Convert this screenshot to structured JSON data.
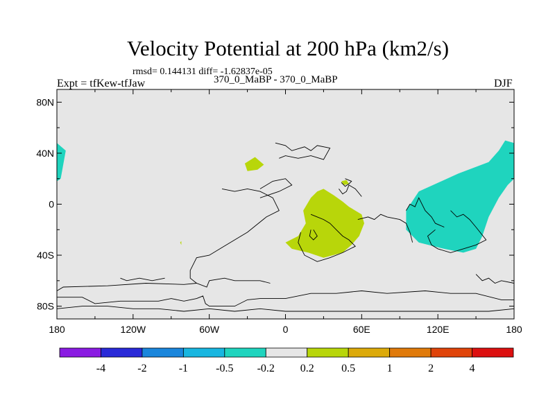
{
  "chart_data": {
    "type": "heatmap",
    "title": "Velocity Potential at 200 hPa (km2/s)",
    "stats_line": "rmsd= 0.144131 diff= -1.62837e-05",
    "left_label": "Expt = tfKew-tfJaw",
    "center_label": "370_0_MaBP - 370_0_MaBP",
    "right_label": "DJF",
    "x_ticks": [
      "180",
      "120W",
      "60W",
      "0",
      "60E",
      "120E",
      "180"
    ],
    "x_tick_values": [
      -180,
      -120,
      -60,
      0,
      60,
      120,
      180
    ],
    "y_ticks": [
      "80N",
      "40N",
      "0",
      "40S",
      "80S"
    ],
    "y_tick_values": [
      80,
      40,
      0,
      -40,
      -80
    ],
    "xlim": [
      -180,
      180
    ],
    "ylim": [
      -90,
      90
    ],
    "colorbar": {
      "labels": [
        "-4",
        "-2",
        "-1",
        "-0.5",
        "-0.2",
        "0.2",
        "0.5",
        "1",
        "2",
        "4"
      ],
      "colors": [
        "#8a1be2",
        "#2a2ad8",
        "#1a86dc",
        "#18b6e0",
        "#1fd4be",
        "#e6e6e6",
        "#b8d60a",
        "#dcaa0a",
        "#e07a0a",
        "#e0440a",
        "#dc1010"
      ]
    },
    "background_color": "#e6e6e6",
    "regions": [
      {
        "level": "-0.5 to -0.2",
        "color": "#1fd4be",
        "points": [
          [
            -180,
            48
          ],
          [
            -173,
            42
          ],
          [
            -177,
            20
          ],
          [
            -180,
            18
          ]
        ]
      },
      {
        "level": "-0.5 to -0.2",
        "color": "#1fd4be",
        "points": [
          [
            180,
            48
          ],
          [
            173,
            50
          ],
          [
            168,
            42
          ],
          [
            160,
            33
          ],
          [
            136,
            24
          ],
          [
            105,
            10
          ],
          [
            95,
            -5
          ],
          [
            95,
            -20
          ],
          [
            105,
            -30
          ],
          [
            125,
            -35
          ],
          [
            140,
            -38
          ],
          [
            150,
            -35
          ],
          [
            155,
            -25
          ],
          [
            160,
            -10
          ],
          [
            168,
            5
          ],
          [
            175,
            15
          ],
          [
            180,
            20
          ]
        ]
      },
      {
        "level": "0.2 to 0.5",
        "color": "#b8d60a",
        "points": [
          [
            20,
            5
          ],
          [
            25,
            10
          ],
          [
            30,
            12
          ],
          [
            38,
            7
          ],
          [
            45,
            2
          ],
          [
            50,
            -2
          ],
          [
            60,
            -8
          ],
          [
            62,
            -15
          ],
          [
            58,
            -25
          ],
          [
            52,
            -32
          ],
          [
            45,
            -38
          ],
          [
            30,
            -42
          ],
          [
            18,
            -38
          ],
          [
            5,
            -35
          ],
          [
            0,
            -30
          ],
          [
            10,
            -25
          ],
          [
            16,
            -15
          ],
          [
            14,
            -5
          ]
        ]
      },
      {
        "level": "0.2 to 0.5",
        "color": "#b8d60a",
        "points": [
          [
            -32,
            32
          ],
          [
            -24,
            37
          ],
          [
            -17,
            31
          ],
          [
            -22,
            27
          ],
          [
            -30,
            26
          ]
        ]
      },
      {
        "level": "0.2 to 0.5",
        "color": "#b8d60a",
        "points": [
          [
            44,
            18
          ],
          [
            48,
            19
          ],
          [
            50,
            16
          ],
          [
            46,
            15
          ]
        ]
      },
      {
        "level": "0.2 to 0.5",
        "color": "#b8d60a",
        "points": [
          [
            -83,
            -30
          ],
          [
            -82,
            -29
          ],
          [
            -82,
            -32
          ]
        ]
      }
    ],
    "coastlines": [
      [
        [
          -180,
          -68
        ],
        [
          -175,
          -65
        ],
        [
          -140,
          -64
        ],
        [
          -110,
          -62
        ],
        [
          -80,
          -63
        ],
        [
          -70,
          -62
        ],
        [
          -62,
          -65
        ],
        [
          -60,
          -60
        ],
        [
          -48,
          -58
        ],
        [
          -40,
          -60
        ],
        [
          -30,
          -60
        ],
        [
          -20,
          -60
        ],
        [
          -12,
          -62
        ]
      ],
      [
        [
          -180,
          -73
        ],
        [
          -160,
          -73
        ],
        [
          -150,
          -78
        ],
        [
          -130,
          -76
        ],
        [
          -120,
          -76
        ],
        [
          -100,
          -76
        ],
        [
          -90,
          -74
        ],
        [
          -80,
          -76
        ],
        [
          -70,
          -74
        ],
        [
          -65,
          -72
        ],
        [
          -63,
          -78
        ],
        [
          -60,
          -80
        ],
        [
          -40,
          -80
        ],
        [
          -30,
          -75
        ],
        [
          -20,
          -74
        ],
        [
          0,
          -74
        ],
        [
          20,
          -70
        ],
        [
          40,
          -70
        ],
        [
          60,
          -68
        ],
        [
          80,
          -70
        ],
        [
          110,
          -68
        ],
        [
          130,
          -70
        ],
        [
          150,
          -70
        ],
        [
          170,
          -75
        ],
        [
          180,
          -75
        ]
      ],
      [
        [
          -180,
          -82
        ],
        [
          -160,
          -80
        ],
        [
          -140,
          -80
        ],
        [
          -120,
          -82
        ],
        [
          -100,
          -82
        ],
        [
          -80,
          -84
        ],
        [
          -60,
          -82
        ],
        [
          -40,
          -84
        ],
        [
          -20,
          -82
        ],
        [
          0,
          -84
        ],
        [
          40,
          -84
        ],
        [
          80,
          -84
        ],
        [
          120,
          -84
        ],
        [
          160,
          -84
        ],
        [
          180,
          -82
        ]
      ],
      [
        [
          -50,
          12
        ],
        [
          -40,
          10
        ],
        [
          -30,
          12
        ],
        [
          -20,
          10
        ],
        [
          -10,
          5
        ],
        [
          -5,
          -5
        ],
        [
          -15,
          -10
        ],
        [
          -30,
          -22
        ],
        [
          -35,
          -25
        ],
        [
          -50,
          -34
        ],
        [
          -60,
          -40
        ],
        [
          -70,
          -42
        ],
        [
          -75,
          -52
        ],
        [
          -75,
          -58
        ],
        [
          -70,
          -62
        ]
      ],
      [
        [
          -20,
          12
        ],
        [
          -10,
          18
        ],
        [
          0,
          20
        ],
        [
          5,
          15
        ],
        [
          -5,
          10
        ],
        [
          -20,
          5
        ]
      ],
      [
        [
          -8,
          48
        ],
        [
          0,
          46
        ],
        [
          5,
          42
        ],
        [
          15,
          45
        ],
        [
          20,
          42
        ],
        [
          25,
          46
        ],
        [
          35,
          44
        ],
        [
          30,
          35
        ],
        [
          20,
          38
        ],
        [
          10,
          36
        ],
        [
          0,
          38
        ],
        [
          -5,
          36
        ]
      ],
      [
        [
          42,
          12
        ],
        [
          45,
          8
        ],
        [
          48,
          10
        ],
        [
          50,
          15
        ],
        [
          55,
          12
        ],
        [
          60,
          6
        ]
      ],
      [
        [
          20,
          -8
        ],
        [
          25,
          -10
        ],
        [
          30,
          -12
        ],
        [
          35,
          -15
        ],
        [
          40,
          -20
        ],
        [
          45,
          -25
        ],
        [
          50,
          -28
        ],
        [
          55,
          -33
        ],
        [
          45,
          -38
        ],
        [
          35,
          -42
        ],
        [
          25,
          -45
        ],
        [
          15,
          -40
        ],
        [
          10,
          -30
        ],
        [
          12,
          -22
        ]
      ],
      [
        [
          22,
          -20
        ],
        [
          25,
          -25
        ],
        [
          22,
          -28
        ],
        [
          19,
          -25
        ],
        [
          20,
          -20
        ]
      ],
      [
        [
          44,
          17
        ],
        [
          47,
          14
        ],
        [
          50,
          16
        ],
        [
          52,
          18
        ],
        [
          47,
          20
        ]
      ],
      [
        [
          57,
          -12
        ],
        [
          65,
          -10
        ],
        [
          70,
          -12
        ],
        [
          75,
          -8
        ],
        [
          80,
          -10
        ],
        [
          90,
          -12
        ],
        [
          95,
          -15
        ],
        [
          98,
          -22
        ],
        [
          100,
          -30
        ]
      ],
      [
        [
          95,
          -5
        ],
        [
          98,
          0
        ],
        [
          102,
          -2
        ],
        [
          105,
          5
        ],
        [
          110,
          -5
        ],
        [
          115,
          -10
        ],
        [
          118,
          -15
        ],
        [
          125,
          -18
        ]
      ],
      [
        [
          130,
          -5
        ],
        [
          135,
          -10
        ],
        [
          140,
          -8
        ],
        [
          145,
          -12
        ],
        [
          150,
          -18
        ],
        [
          158,
          -28
        ],
        [
          150,
          -32
        ],
        [
          140,
          -35
        ],
        [
          130,
          -38
        ],
        [
          120,
          -35
        ],
        [
          115,
          -32
        ],
        [
          112,
          -25
        ],
        [
          118,
          -20
        ]
      ],
      [
        [
          150,
          -55
        ],
        [
          155,
          -60
        ],
        [
          160,
          -58
        ],
        [
          165,
          -62
        ],
        [
          170,
          -60
        ],
        [
          180,
          -62
        ]
      ],
      [
        [
          -95,
          -58
        ],
        [
          -105,
          -60
        ],
        [
          -115,
          -58
        ],
        [
          -125,
          -60
        ],
        [
          -130,
          -58
        ]
      ]
    ]
  }
}
